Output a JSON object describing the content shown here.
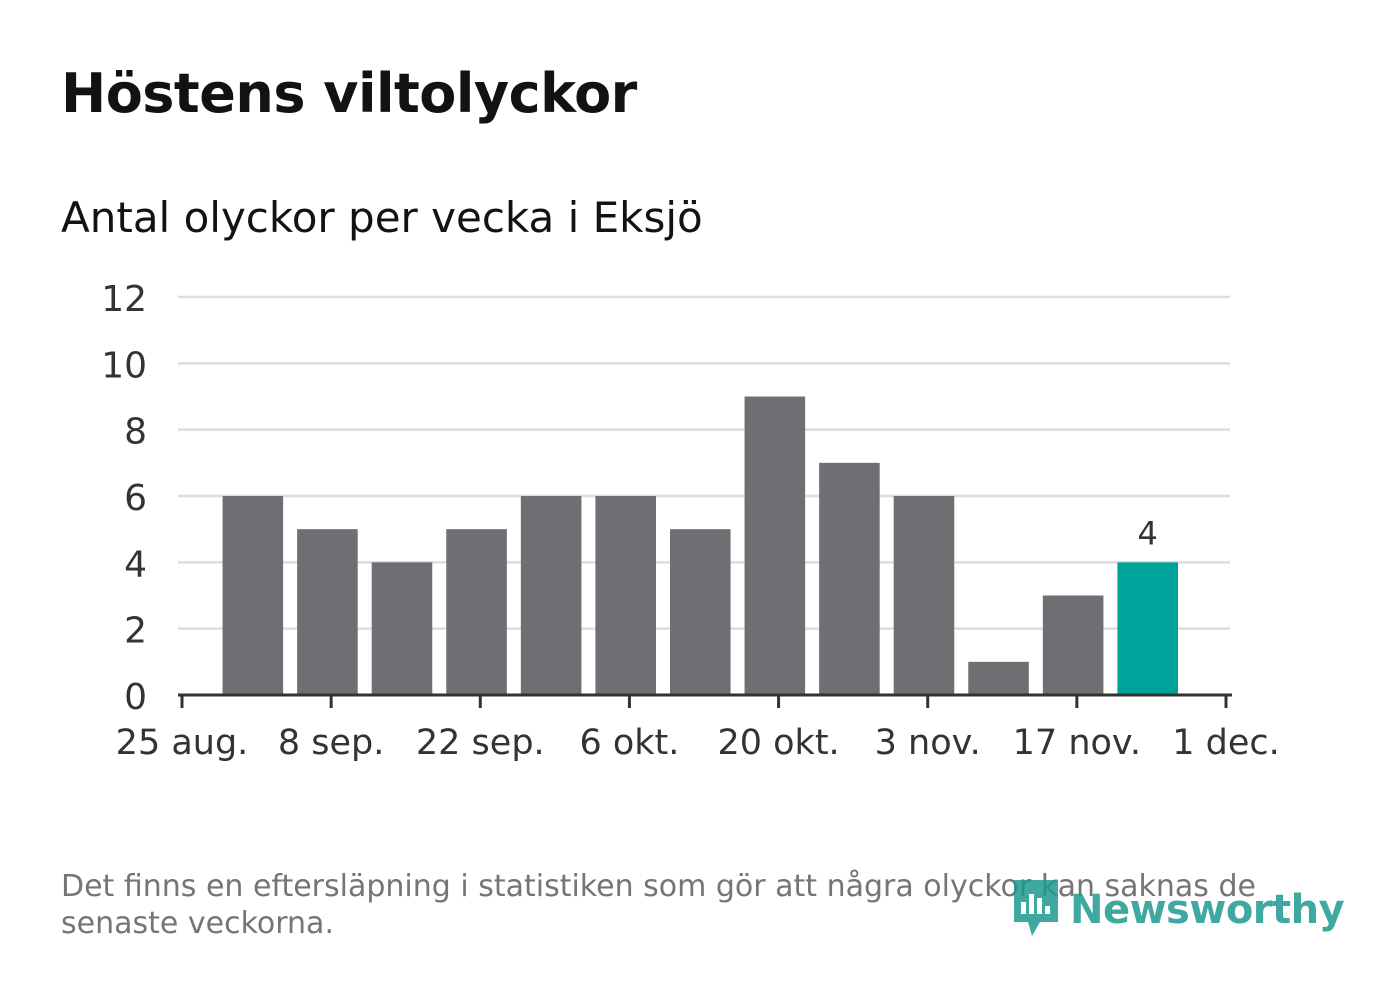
{
  "title": "Höstens viltolyckor",
  "subtitle": "Antal olyckor per vecka i Eksjö",
  "footnote": "Det finns en eftersläpning i statistiken som gör att några olyckor kan saknas de senaste veckorna.",
  "brand": {
    "name": "Newsworthy",
    "icon": "newsworthy-logo-icon",
    "color": "#1e9a91"
  },
  "chart_data": {
    "type": "bar",
    "title": "Höstens viltolyckor",
    "subtitle": "Antal olyckor per vecka i Eksjö",
    "x_ticks": [
      "25 aug.",
      "8 sep.",
      "22 sep.",
      "6 okt.",
      "20 okt.",
      "3 nov.",
      "17 nov.",
      "1 dec."
    ],
    "x_tick_dates": [
      "2025-08-25",
      "2025-09-08",
      "2025-09-22",
      "2025-10-06",
      "2025-10-20",
      "2025-11-03",
      "2025-11-17",
      "2025-12-01"
    ],
    "week_start": [
      "2025-08-25",
      "2025-09-01",
      "2025-09-08",
      "2025-09-15",
      "2025-09-22",
      "2025-09-29",
      "2025-10-06",
      "2025-10-13",
      "2025-10-20",
      "2025-10-27",
      "2025-11-03",
      "2025-11-10",
      "2025-11-17"
    ],
    "values": [
      6,
      5,
      4,
      5,
      6,
      6,
      5,
      9,
      7,
      6,
      1,
      3,
      4
    ],
    "highlight_index": 12,
    "highlight_label": "4",
    "y_ticks": [
      0,
      2,
      4,
      6,
      8,
      10,
      12
    ],
    "ylim": [
      0,
      12
    ],
    "grid": true,
    "colors": {
      "bar": "#6f6e73",
      "highlight": "#00a39a",
      "grid": "#dddddd",
      "axis": "#333333"
    }
  }
}
